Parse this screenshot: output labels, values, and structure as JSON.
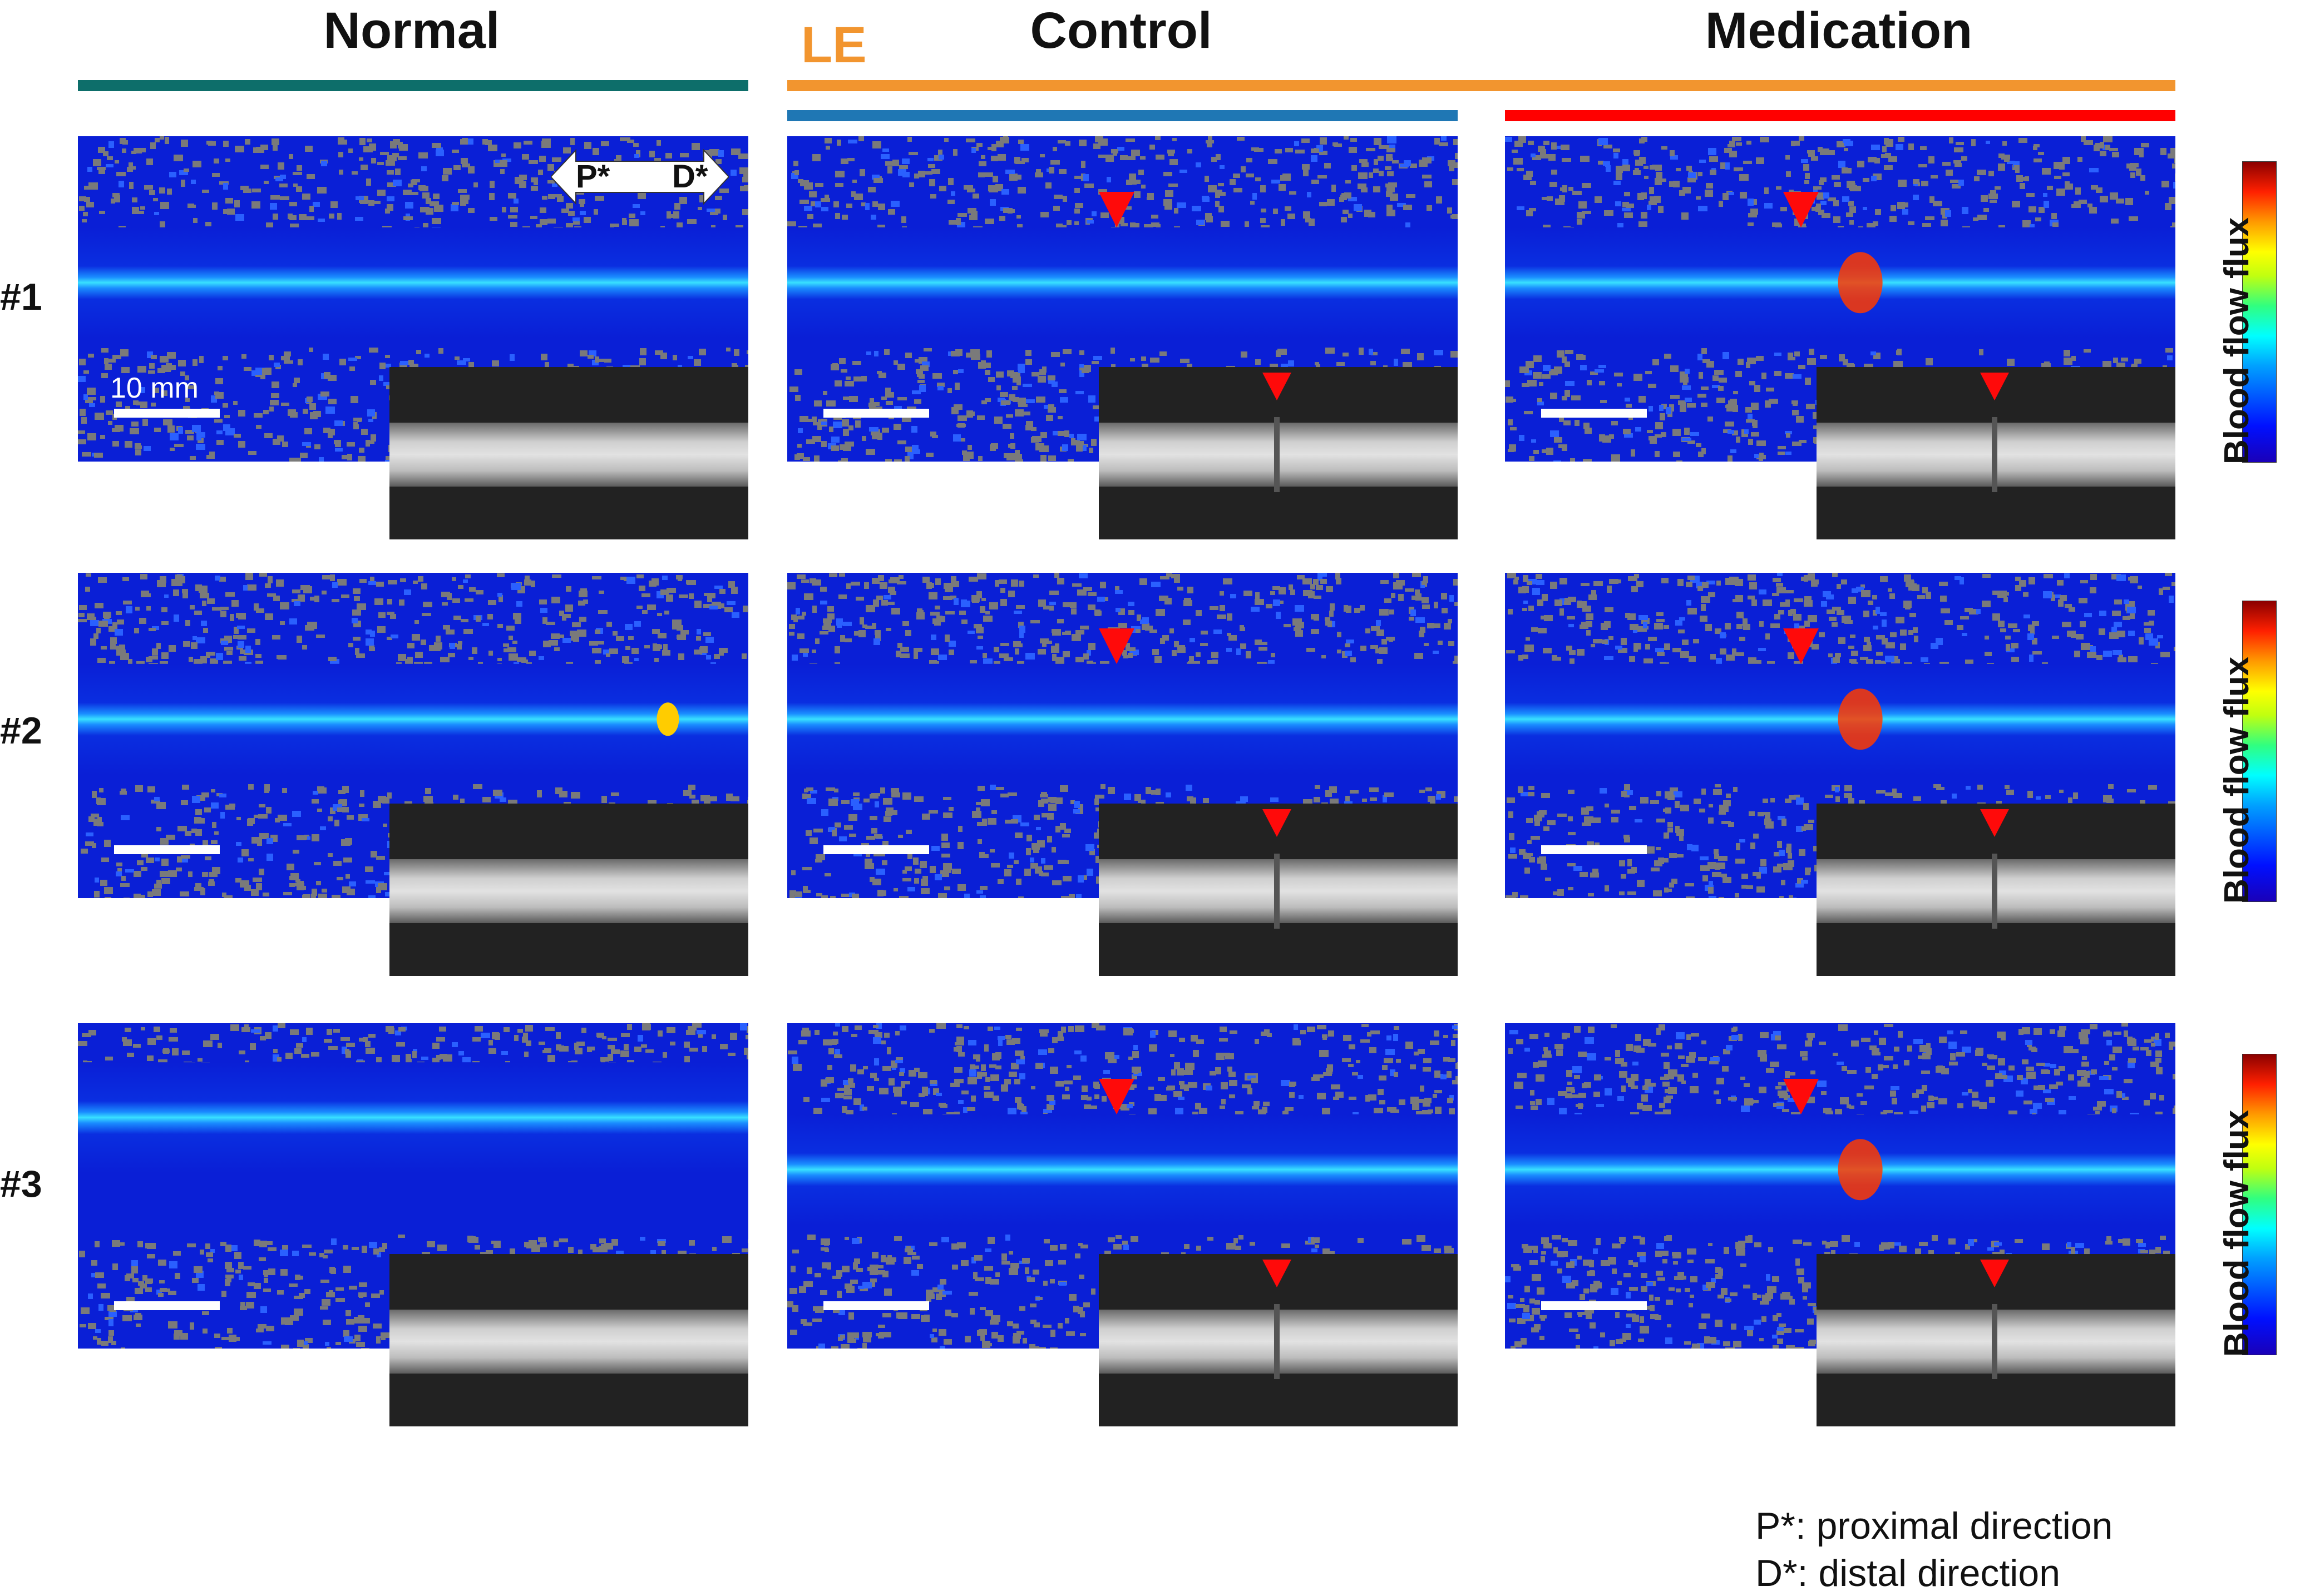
{
  "headers": {
    "normal": "Normal",
    "le": "LE",
    "control": "Control",
    "medication": "Medication"
  },
  "rows": [
    "#1",
    "#2",
    "#3"
  ],
  "scale_label": "10 mm",
  "direction": {
    "proximal": "P*",
    "distal": "D*"
  },
  "colorbar_label": "Blood flow flux",
  "legend": {
    "proximal_note": "P*: proximal direction",
    "distal_note": "D*: distal direction"
  },
  "colors": {
    "normal_bar": "#0d6e6a",
    "le_bar": "#f2952f",
    "control_bar": "#1f77b4",
    "medication_bar": "#ff0000",
    "le_text": "#f2952f",
    "marker": "#ff0a0a",
    "background_blue": "#0a1fd6"
  }
}
